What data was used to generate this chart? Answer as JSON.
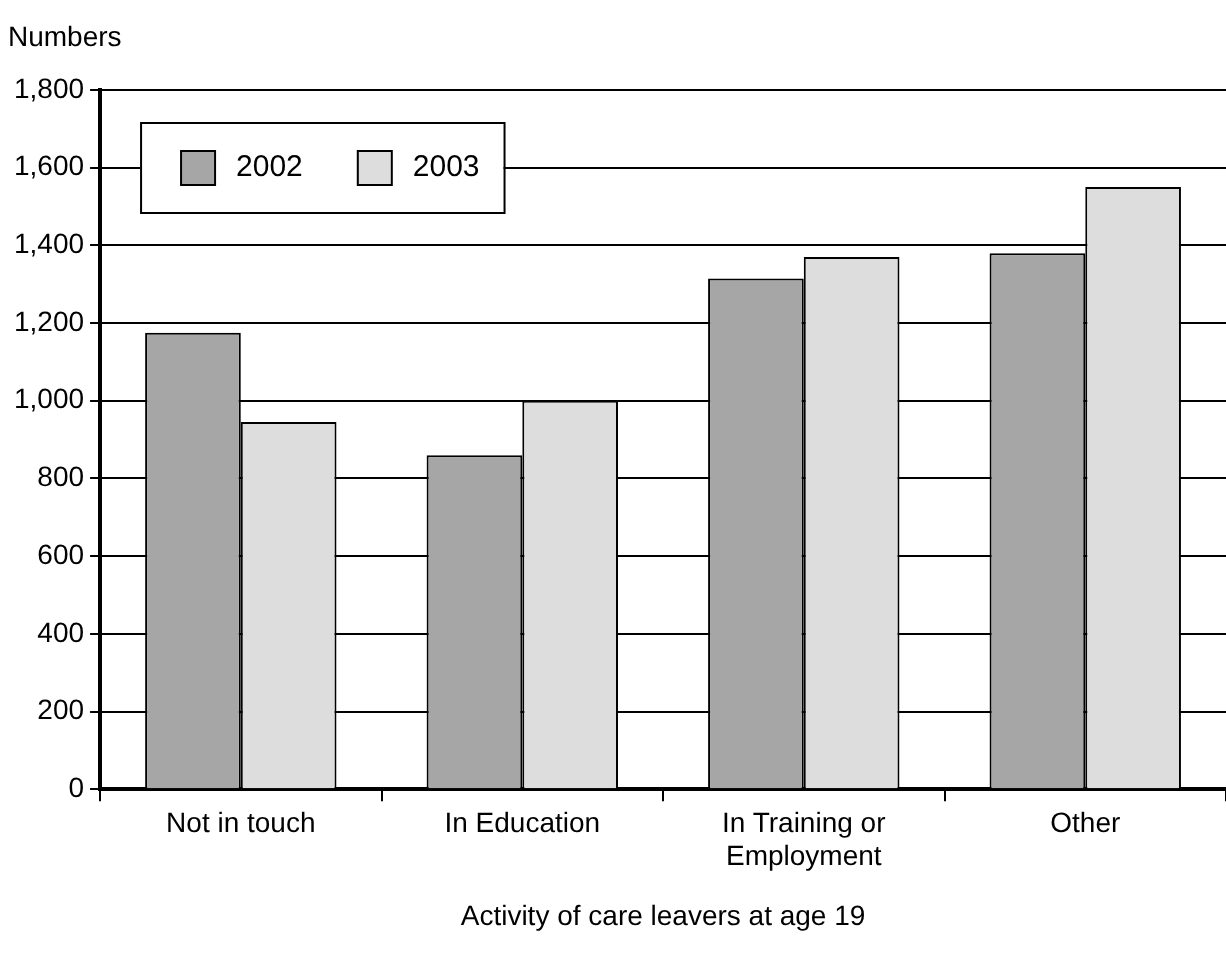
{
  "chart_data": {
    "type": "bar",
    "ylabel": "Numbers",
    "xlabel": "Activity of care leavers at age 19",
    "categories": [
      "Not in touch",
      "In Education",
      "In Training or Employment",
      "Other"
    ],
    "series": [
      {
        "name": "2002",
        "color": "#a6a6a6",
        "values": [
          1175,
          860,
          1315,
          1380
        ]
      },
      {
        "name": "2003",
        "color": "#dddddd",
        "values": [
          945,
          1000,
          1370,
          1550
        ]
      }
    ],
    "ylim": [
      0,
      1800
    ],
    "yticks": [
      0,
      200,
      400,
      600,
      800,
      {
        "value": 1000,
        "label": "1,000"
      },
      {
        "value": 1200,
        "label": "1,200"
      },
      {
        "value": 1400,
        "label": "1,400"
      },
      {
        "value": 1600,
        "label": "1,600"
      },
      {
        "value": 1800,
        "label": "1,800"
      }
    ],
    "grid": "y",
    "legend": "top left"
  }
}
